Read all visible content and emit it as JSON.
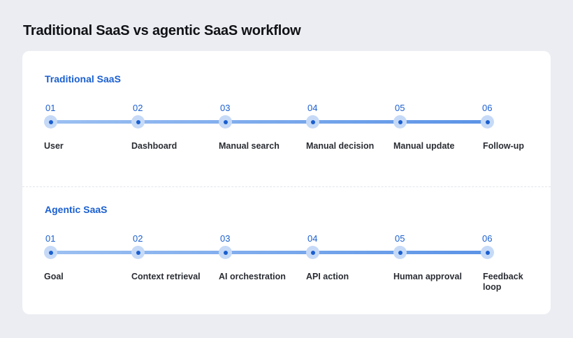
{
  "title": "Traditional SaaS vs agentic SaaS workflow",
  "sections": [
    {
      "title": "Traditional SaaS",
      "steps": [
        {
          "num": "01",
          "label": "User"
        },
        {
          "num": "02",
          "label": "Dashboard"
        },
        {
          "num": "03",
          "label": "Manual search"
        },
        {
          "num": "04",
          "label": "Manual decision"
        },
        {
          "num": "05",
          "label": "Manual update"
        },
        {
          "num": "06",
          "label": "Follow-up"
        }
      ]
    },
    {
      "title": "Agentic SaaS",
      "steps": [
        {
          "num": "01",
          "label": "Goal"
        },
        {
          "num": "02",
          "label": "Context retrieval"
        },
        {
          "num": "03",
          "label": "AI orchestration"
        },
        {
          "num": "04",
          "label": "API action"
        },
        {
          "num": "05",
          "label": "Human approval"
        },
        {
          "num": "06",
          "label": "Feedback loop"
        }
      ]
    }
  ],
  "colors": {
    "accent": "#1a5fd0",
    "track_start": "#9cc0f2",
    "track_end": "#5b93e6",
    "node_halo": "#c6daf7",
    "background": "#ebedf2",
    "card": "#ffffff"
  }
}
